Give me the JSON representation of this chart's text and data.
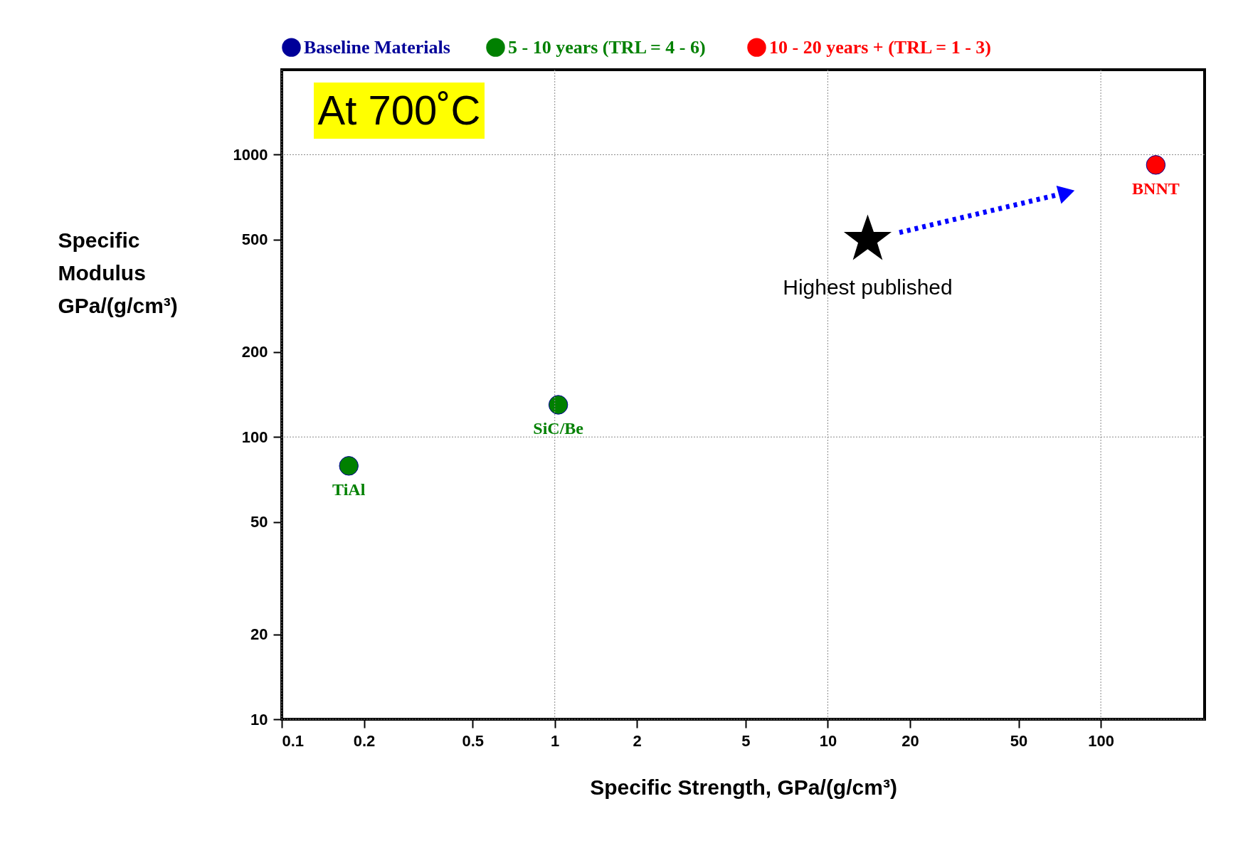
{
  "chart_data": {
    "type": "scatter",
    "xlabel": "Specific Strength, GPa/(g/cm³)",
    "ylabel": "Specific\nModulus\nGPa/(g/cm³)",
    "log": "xy",
    "xlim": [
      0.1,
      240
    ],
    "ylim": [
      10,
      2000
    ],
    "xticks": [
      0.1,
      0.2,
      0.5,
      1,
      2,
      5,
      10,
      20,
      50,
      100
    ],
    "yticks": [
      10,
      20,
      50,
      100,
      200,
      500,
      1000
    ],
    "grid": true,
    "legend": "top",
    "marker": "circle",
    "series": [
      {
        "name": "Baseline Materials",
        "color": "#000099"
      },
      {
        "name": "5 - 10 years  (TRL = 4 - 6)",
        "color": "#008000",
        "x": [
          0.176,
          1.03
        ],
        "values": [
          79,
          130
        ]
      },
      {
        "name": "10 - 20 years +  (TRL = 1 - 3)",
        "color": "#ff0000",
        "x": [
          159
        ],
        "values": [
          920
        ]
      },
      {
        "color": "#000000",
        "marker": "star",
        "x": [
          14
        ],
        "values": [
          500
        ]
      },
      {
        "type": "line",
        "color": "#0000ff",
        "line_style": "dotted",
        "marker": "triangle",
        "x": [
          18.3,
          75
        ],
        "values": [
          530,
          734
        ]
      }
    ],
    "annotations": [
      "At 700˚C",
      {
        "text": "TiAl",
        "x": 0.176,
        "y": 79
      },
      {
        "text": "SiC/Be",
        "x": 1.03,
        "y": 130
      },
      {
        "text": "BNNT",
        "x": 159,
        "y": 920
      },
      {
        "text": "Highest published",
        "x": 14,
        "y": 500
      }
    ]
  }
}
